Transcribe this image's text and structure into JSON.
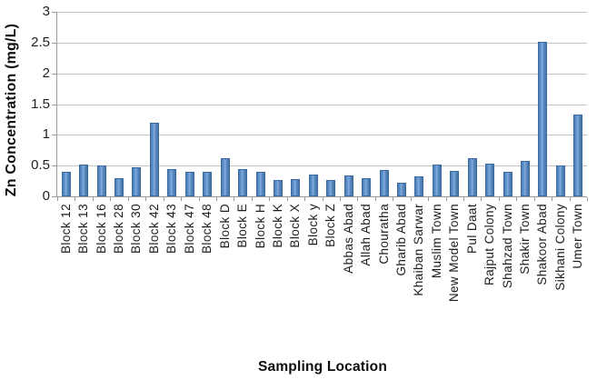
{
  "chart_data": {
    "type": "bar",
    "title": "",
    "xlabel": "Sampling Location",
    "ylabel": "Zn Concentration (mg/L)",
    "categories": [
      "Block 12",
      "Block 13",
      "Block 16",
      "Block 28",
      "Block 30",
      "Block 42",
      "Block 43",
      "Block 47",
      "Block 48",
      "Block D",
      "Block E",
      "Block H",
      "Block K",
      "Block X",
      "Block y",
      "Block Z",
      "Abbas Abad",
      "Allah Abad",
      "Chouratha",
      "Gharib Abad",
      "Khaiban Sarwar",
      "Muslim Town",
      "New Model Town",
      "Pul Daat",
      "Rajput Colony",
      "Shahzad Town",
      "Shakir Town",
      "Shakoor Abad",
      "Sikhani Colony",
      "Umer Town"
    ],
    "values": [
      0.4,
      0.52,
      0.5,
      0.3,
      0.47,
      1.2,
      0.44,
      0.4,
      0.4,
      0.62,
      0.44,
      0.4,
      0.26,
      0.28,
      0.35,
      0.27,
      0.34,
      0.3,
      0.43,
      0.22,
      0.33,
      0.52,
      0.42,
      0.62,
      0.54,
      0.4,
      0.57,
      2.52,
      0.5,
      1.33
    ],
    "ylim": [
      0,
      3
    ],
    "ytick_labels": [
      "0",
      "0.5",
      "1",
      "1.5",
      "2",
      "2.5",
      "3"
    ],
    "grid": "horizontal",
    "legend_position": "none",
    "bar_color": "#4f81bd",
    "bar_edge_color": "#3a6aa0",
    "gridline_color": "#c3c3c3",
    "axis_color": "#9a9a9a",
    "tick_text_color": "#1f1f1f",
    "title_text_color": "#0d0d0d",
    "background_color": "#ffffff"
  }
}
